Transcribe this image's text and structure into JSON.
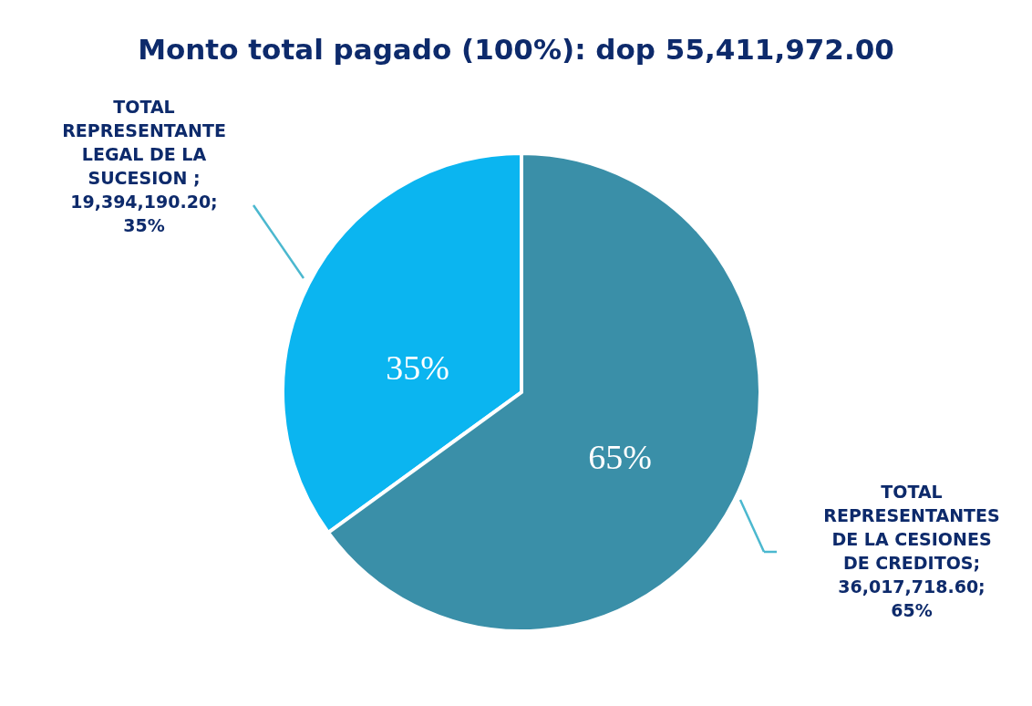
{
  "chart_data": {
    "type": "pie",
    "title": "Monto total pagado (100%): dop 55,411,972.00",
    "categories": [
      "TOTAL REPRESENTANTE LEGAL DE LA SUCESION",
      "TOTAL REPRESENTANTES DE LA CESIONES DE CREDITOS"
    ],
    "values": [
      19394190.2,
      36017718.6
    ],
    "value_labels": [
      " ; 19,394,190.20; 35%",
      "; 36,017,718.60; 65%"
    ],
    "colors": [
      "#0bb5f0",
      "#3a8fa8"
    ],
    "annotations": [
      {
        "text": "35%",
        "x": "TOTAL REPRESENTANTE LEGAL DE LA SUCESION"
      },
      {
        "text": "65%",
        "x": "TOTAL REPRESENTANTES DE LA CESIONES DE CREDITOS"
      }
    ]
  }
}
